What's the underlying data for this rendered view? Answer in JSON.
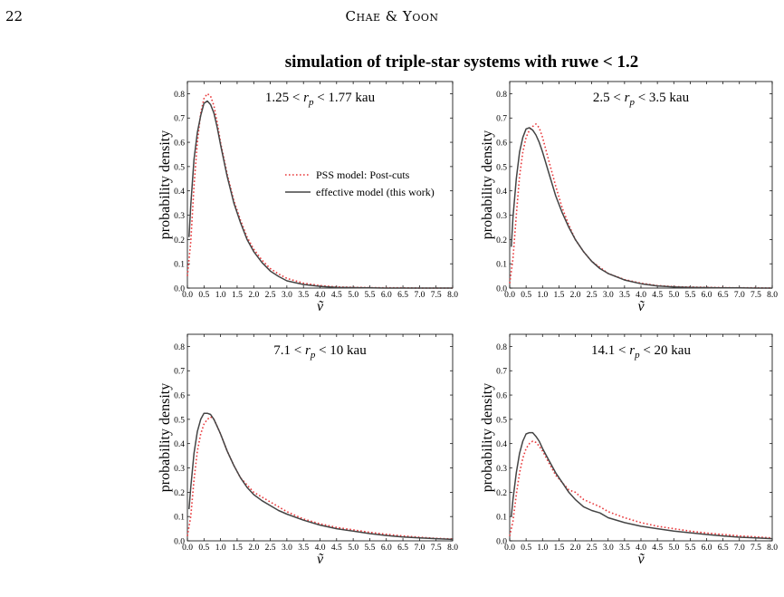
{
  "header": {
    "page_number": "22",
    "running_head": "Chae & Yoon"
  },
  "figure": {
    "title": "simulation of triple-star systems with ruwe < 1.2"
  },
  "chart_data": [
    {
      "type": "line",
      "panel_label": "1.25 < r_p < 1.77 kau",
      "label_parts": [
        "1.25 < ",
        "r",
        "p",
        " < 1.77 kau"
      ],
      "xlabel": "ṽ",
      "ylabel": "probability density",
      "xlim": [
        0,
        8
      ],
      "ylim": [
        0,
        0.85
      ],
      "xticks": [
        "0.0",
        "0.5",
        "1.0",
        "1.5",
        "2.0",
        "2.5",
        "3.0",
        "3.5",
        "4.0",
        "4.5",
        "5.0",
        "5.5",
        "6.0",
        "6.5",
        "7.0",
        "7.5",
        "8.0"
      ],
      "yticks": [
        "0.0",
        "0.1",
        "0.2",
        "0.3",
        "0.4",
        "0.5",
        "0.6",
        "0.7",
        "0.8"
      ],
      "legend": true,
      "legend_position": "center-right",
      "series": [
        {
          "name": "PSS model: Post-cuts",
          "color": "#e8383b",
          "style": "dotted",
          "x": [
            0,
            0.1,
            0.2,
            0.3,
            0.4,
            0.5,
            0.6,
            0.7,
            0.8,
            0.9,
            1.0,
            1.2,
            1.4,
            1.6,
            1.8,
            2.0,
            2.25,
            2.5,
            2.75,
            3.0,
            3.5,
            4.0,
            4.5,
            5.0,
            5.5,
            6.0,
            6.5,
            7.0,
            7.5,
            8.0
          ],
          "y": [
            0.05,
            0.19,
            0.42,
            0.6,
            0.72,
            0.78,
            0.8,
            0.79,
            0.75,
            0.68,
            0.6,
            0.47,
            0.36,
            0.28,
            0.21,
            0.16,
            0.115,
            0.08,
            0.058,
            0.04,
            0.02,
            0.01,
            0.005,
            0.003,
            0.002,
            0.001,
            0.001,
            0.0,
            0.0,
            0.0
          ]
        },
        {
          "name": "effective model (this work)",
          "color": "#444444",
          "style": "solid",
          "x": [
            0.05,
            0.1,
            0.2,
            0.3,
            0.4,
            0.5,
            0.6,
            0.7,
            0.8,
            0.9,
            1.0,
            1.2,
            1.4,
            1.6,
            1.8,
            2.0,
            2.25,
            2.5,
            2.75,
            3.0,
            3.5,
            4.0,
            4.5,
            5.0,
            5.5,
            6.0,
            6.5,
            7.0,
            7.5,
            8.0
          ],
          "y": [
            0.21,
            0.34,
            0.53,
            0.64,
            0.71,
            0.76,
            0.77,
            0.755,
            0.72,
            0.66,
            0.59,
            0.46,
            0.35,
            0.27,
            0.2,
            0.15,
            0.105,
            0.07,
            0.048,
            0.03,
            0.015,
            0.007,
            0.003,
            0.002,
            0.001,
            0.0,
            0.0,
            0.0,
            0.0,
            0.0
          ]
        }
      ]
    },
    {
      "type": "line",
      "panel_label": "2.5 < r_p < 3.5 kau",
      "label_parts": [
        "2.5 < ",
        "r",
        "p",
        " < 3.5 kau"
      ],
      "xlabel": "ṽ",
      "ylabel": "probability density",
      "xlim": [
        0,
        8
      ],
      "ylim": [
        0,
        0.85
      ],
      "xticks": [
        "0.0",
        "0.5",
        "1.0",
        "1.5",
        "2.0",
        "2.5",
        "3.0",
        "3.5",
        "4.0",
        "4.5",
        "5.0",
        "5.5",
        "6.0",
        "6.5",
        "7.0",
        "7.5",
        "8.0"
      ],
      "yticks": [
        "0.0",
        "0.1",
        "0.2",
        "0.3",
        "0.4",
        "0.5",
        "0.6",
        "0.7",
        "0.8"
      ],
      "legend": false,
      "series": [
        {
          "name": "PSS model: Post-cuts",
          "color": "#e8383b",
          "style": "dotted",
          "x": [
            0,
            0.1,
            0.2,
            0.3,
            0.4,
            0.5,
            0.6,
            0.7,
            0.8,
            0.9,
            1.0,
            1.2,
            1.4,
            1.6,
            1.8,
            2.0,
            2.25,
            2.5,
            2.75,
            3.0,
            3.5,
            4.0,
            4.5,
            5.0,
            5.5,
            6.0,
            6.5,
            7.0,
            7.5,
            8.0
          ],
          "y": [
            0.02,
            0.12,
            0.3,
            0.46,
            0.56,
            0.62,
            0.65,
            0.665,
            0.675,
            0.66,
            0.62,
            0.52,
            0.42,
            0.33,
            0.26,
            0.2,
            0.15,
            0.11,
            0.085,
            0.06,
            0.035,
            0.02,
            0.01,
            0.006,
            0.004,
            0.003,
            0.002,
            0.001,
            0.001,
            0.0
          ]
        },
        {
          "name": "effective model (this work)",
          "color": "#444444",
          "style": "solid",
          "x": [
            0.05,
            0.1,
            0.2,
            0.3,
            0.4,
            0.5,
            0.6,
            0.7,
            0.8,
            0.9,
            1.0,
            1.2,
            1.4,
            1.6,
            1.8,
            2.0,
            2.25,
            2.5,
            2.75,
            3.0,
            3.5,
            4.0,
            4.5,
            5.0,
            5.5,
            6.0,
            6.5,
            7.0,
            7.5,
            8.0
          ],
          "y": [
            0.17,
            0.29,
            0.45,
            0.56,
            0.62,
            0.655,
            0.66,
            0.65,
            0.63,
            0.6,
            0.56,
            0.47,
            0.38,
            0.31,
            0.25,
            0.2,
            0.15,
            0.11,
            0.08,
            0.06,
            0.033,
            0.018,
            0.009,
            0.005,
            0.003,
            0.002,
            0.001,
            0.001,
            0.0,
            0.0
          ]
        }
      ]
    },
    {
      "type": "line",
      "panel_label": "7.1 < r_p < 10 kau",
      "label_parts": [
        "7.1 < ",
        "r",
        "p",
        " < 10 kau"
      ],
      "xlabel": "ṽ",
      "ylabel": "probability density",
      "xlim": [
        0,
        8
      ],
      "ylim": [
        0,
        0.85
      ],
      "xticks": [
        "0.0",
        "0.5",
        "1.0",
        "1.5",
        "2.0",
        "2.5",
        "3.0",
        "3.5",
        "4.0",
        "4.5",
        "5.0",
        "5.5",
        "6.0",
        "6.5",
        "7.0",
        "7.5",
        "8.0"
      ],
      "yticks": [
        "0.0",
        "0.1",
        "0.2",
        "0.3",
        "0.4",
        "0.5",
        "0.6",
        "0.7",
        "0.8"
      ],
      "legend": false,
      "series": [
        {
          "name": "PSS model: Post-cuts",
          "color": "#e8383b",
          "style": "dotted",
          "x": [
            0,
            0.1,
            0.2,
            0.3,
            0.4,
            0.5,
            0.6,
            0.7,
            0.8,
            0.9,
            1.0,
            1.2,
            1.4,
            1.6,
            1.8,
            2.0,
            2.25,
            2.5,
            2.75,
            3.0,
            3.5,
            4.0,
            4.5,
            5.0,
            5.5,
            6.0,
            6.5,
            7.0,
            7.5,
            8.0
          ],
          "y": [
            0.02,
            0.1,
            0.25,
            0.37,
            0.44,
            0.48,
            0.5,
            0.51,
            0.5,
            0.47,
            0.44,
            0.37,
            0.31,
            0.26,
            0.23,
            0.2,
            0.18,
            0.16,
            0.14,
            0.12,
            0.09,
            0.07,
            0.055,
            0.045,
            0.035,
            0.027,
            0.02,
            0.015,
            0.01,
            0.008
          ]
        },
        {
          "name": "effective model (this work)",
          "color": "#444444",
          "style": "solid",
          "x": [
            0.05,
            0.1,
            0.2,
            0.3,
            0.4,
            0.5,
            0.6,
            0.7,
            0.8,
            0.9,
            1.0,
            1.2,
            1.4,
            1.6,
            1.8,
            2.0,
            2.25,
            2.5,
            2.75,
            3.0,
            3.5,
            4.0,
            4.5,
            5.0,
            5.5,
            6.0,
            6.5,
            7.0,
            7.5,
            8.0
          ],
          "y": [
            0.13,
            0.22,
            0.36,
            0.45,
            0.5,
            0.525,
            0.525,
            0.52,
            0.5,
            0.47,
            0.44,
            0.37,
            0.31,
            0.26,
            0.22,
            0.19,
            0.165,
            0.145,
            0.125,
            0.11,
            0.085,
            0.065,
            0.05,
            0.04,
            0.03,
            0.022,
            0.016,
            0.012,
            0.009,
            0.006
          ]
        }
      ]
    },
    {
      "type": "line",
      "panel_label": "14.1 < r_p < 20 kau",
      "label_parts": [
        "14.1 < ",
        "r",
        "p",
        " < 20 kau"
      ],
      "xlabel": "ṽ",
      "ylabel": "probability density",
      "xlim": [
        0,
        8
      ],
      "ylim": [
        0,
        0.85
      ],
      "xticks": [
        "0.0",
        "0.5",
        "1.0",
        "1.5",
        "2.0",
        "2.5",
        "3.0",
        "3.5",
        "4.0",
        "4.5",
        "5.0",
        "5.5",
        "6.0",
        "6.5",
        "7.0",
        "7.5",
        "8.0"
      ],
      "yticks": [
        "0.0",
        "0.1",
        "0.2",
        "0.3",
        "0.4",
        "0.5",
        "0.6",
        "0.7",
        "0.8"
      ],
      "legend": false,
      "series": [
        {
          "name": "PSS model: Post-cuts",
          "color": "#e8383b",
          "style": "dotted",
          "x": [
            0,
            0.1,
            0.2,
            0.3,
            0.4,
            0.5,
            0.6,
            0.7,
            0.8,
            0.9,
            1.0,
            1.2,
            1.4,
            1.6,
            1.8,
            2.0,
            2.25,
            2.5,
            2.75,
            3.0,
            3.5,
            4.0,
            4.5,
            5.0,
            5.5,
            6.0,
            6.5,
            7.0,
            7.5,
            8.0
          ],
          "y": [
            0.02,
            0.08,
            0.19,
            0.28,
            0.34,
            0.38,
            0.4,
            0.41,
            0.405,
            0.39,
            0.37,
            0.32,
            0.27,
            0.24,
            0.21,
            0.2,
            0.17,
            0.155,
            0.14,
            0.12,
            0.095,
            0.075,
            0.06,
            0.05,
            0.04,
            0.032,
            0.026,
            0.02,
            0.016,
            0.012
          ]
        },
        {
          "name": "effective model (this work)",
          "color": "#444444",
          "style": "solid",
          "x": [
            0.05,
            0.1,
            0.2,
            0.3,
            0.4,
            0.5,
            0.6,
            0.7,
            0.8,
            0.9,
            1.0,
            1.2,
            1.4,
            1.6,
            1.8,
            2.0,
            2.25,
            2.5,
            2.75,
            3.0,
            3.5,
            4.0,
            4.5,
            5.0,
            5.5,
            6.0,
            6.5,
            7.0,
            7.5,
            8.0
          ],
          "y": [
            0.1,
            0.17,
            0.28,
            0.36,
            0.41,
            0.44,
            0.445,
            0.445,
            0.43,
            0.41,
            0.38,
            0.33,
            0.28,
            0.24,
            0.2,
            0.17,
            0.14,
            0.125,
            0.115,
            0.095,
            0.075,
            0.06,
            0.05,
            0.04,
            0.033,
            0.026,
            0.02,
            0.015,
            0.012,
            0.009
          ]
        }
      ]
    }
  ]
}
